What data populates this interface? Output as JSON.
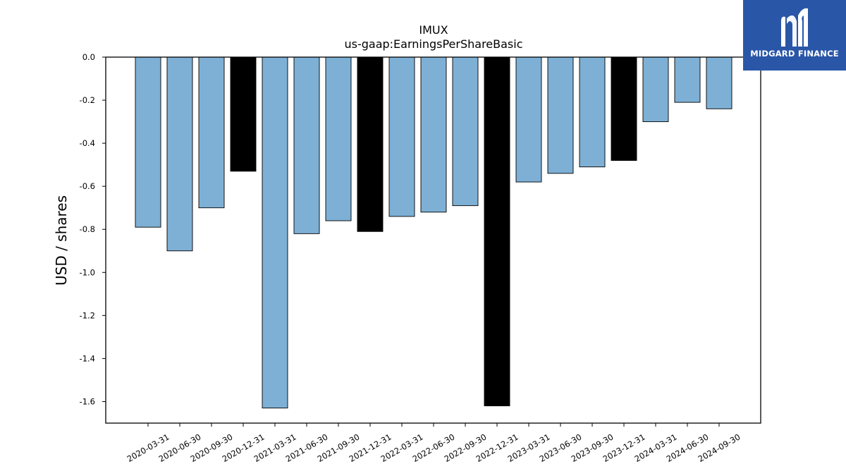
{
  "chart_data": {
    "type": "bar",
    "title": "IMUX",
    "subtitle": "us-gaap:EarningsPerShareBasic",
    "xlabel": "",
    "ylabel": "USD / shares",
    "ylim": [
      -1.7,
      0.0
    ],
    "yticks": [
      0.0,
      -0.2,
      -0.4,
      -0.6,
      -0.8,
      -1.0,
      -1.2,
      -1.4,
      -1.6
    ],
    "grid": false,
    "categories": [
      "2020-03-31",
      "2020-06-30",
      "2020-09-30",
      "2020-12-31",
      "2021-03-31",
      "2021-06-30",
      "2021-09-30",
      "2021-12-31",
      "2022-03-31",
      "2022-06-30",
      "2022-09-30",
      "2022-12-31",
      "2023-03-31",
      "2023-06-30",
      "2023-09-30",
      "2023-12-31",
      "2024-03-31",
      "2024-06-30",
      "2024-09-30"
    ],
    "values": [
      -0.79,
      -0.9,
      -0.7,
      -0.53,
      -1.63,
      -0.82,
      -0.76,
      -0.81,
      -0.74,
      -0.72,
      -0.69,
      -1.62,
      -0.58,
      -0.54,
      -0.51,
      -0.48,
      -0.3,
      -0.21,
      -0.24
    ],
    "highlight": [
      false,
      false,
      false,
      true,
      false,
      false,
      false,
      true,
      false,
      false,
      false,
      true,
      false,
      false,
      false,
      true,
      false,
      false,
      false
    ],
    "colors": {
      "bar": "#7eb0d5",
      "highlight": "#000000",
      "edge": "#000000"
    }
  },
  "logo": {
    "text": "MIDGARD FINANCE",
    "background": "#2a56a8"
  }
}
